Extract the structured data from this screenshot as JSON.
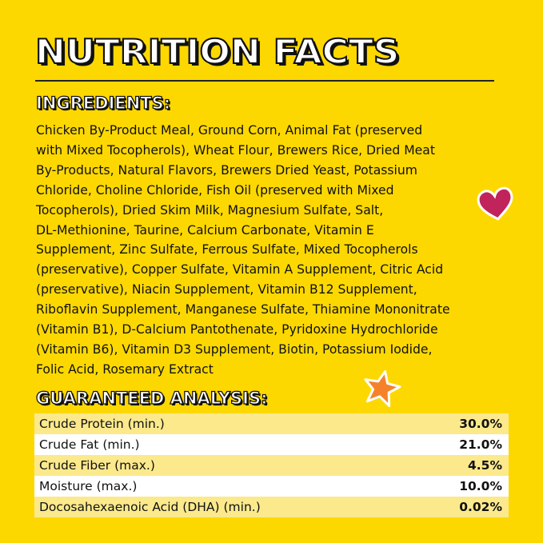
{
  "title": "NUTRITION FACTS",
  "ingredients": {
    "heading": "INGREDIENTS:",
    "lines": [
      "Chicken By-Product Meal, Ground Corn, Animal Fat (preserved",
      "with Mixed Tocopherols), Wheat Flour, Brewers Rice,  Dried Meat",
      "By-Products, Natural Flavors, Brewers Dried Yeast, Potassium",
      "Chloride, Choline Chloride, Fish Oil (preserved with Mixed",
      "Tocopherols), Dried Skim Milk, Magnesium Sulfate, Salt,",
      "DL-Methionine, Taurine, Calcium Carbonate, Vitamin E",
      "Supplement, Zinc Sulfate, Ferrous Sulfate, Mixed Tocopherols",
      "(preservative), Copper Sulfate, Vitamin A Supplement, Citric Acid",
      "(preservative), Niacin Supplement, Vitamin B12 Supplement,",
      "Riboflavin Supplement, Manganese Sulfate, Thiamine Mononitrate",
      "(Vitamin B1), D-Calcium Pantothenate, Pyridoxine Hydrochloride",
      "(Vitamin B6), Vitamin D3 Supplement, Biotin, Potassium Iodide,",
      "Folic Acid, Rosemary Extract"
    ]
  },
  "analysis": {
    "heading": "GUARANTEED ANALYSIS:",
    "rows": [
      {
        "label": "Crude Protein (min.)",
        "value": "30.0%"
      },
      {
        "label": "Crude Fat (min.)",
        "value": "21.0%"
      },
      {
        "label": "Crude Fiber (max.)",
        "value": "4.5%"
      },
      {
        "label": "Moisture (max.)",
        "value": "10.0%"
      },
      {
        "label": "Docosahexaenoic Acid (DHA) (min.)",
        "value": "0.02%"
      }
    ]
  },
  "decorations": {
    "heart_color": "#c0245a",
    "star_color": "#f5822a",
    "background": "#fdd800"
  }
}
